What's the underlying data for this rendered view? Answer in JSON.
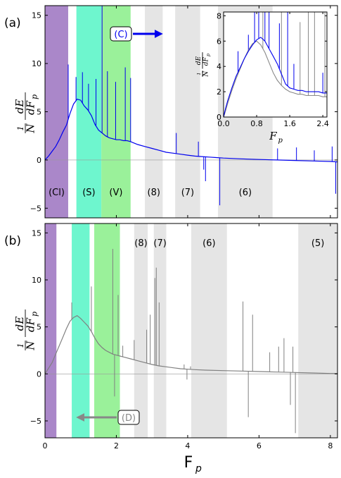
{
  "chart_data": [
    {
      "panel": "(a)",
      "type": "line",
      "xlim": [
        0,
        8.2
      ],
      "ylim": [
        -6,
        16
      ],
      "xticks": [],
      "yticks": [
        -5,
        0,
        5,
        10,
        15
      ],
      "ytick_labels": [
        "−5",
        "0",
        "5",
        "10",
        "15"
      ],
      "ylabel": {
        "frac_top": "1",
        "frac_bottom": "N",
        "dE": "dE",
        "dFp": "dF",
        "sub": "p"
      },
      "series": [
        {
          "color": "#0000ee",
          "x": [
            0.0,
            0.1,
            0.2,
            0.3,
            0.4,
            0.5,
            0.6,
            0.7,
            0.8,
            0.9,
            1.0,
            1.1,
            1.2,
            1.3,
            1.4,
            1.5,
            1.6,
            1.7,
            1.8,
            1.9,
            2.0,
            2.1,
            2.2,
            2.3,
            2.4,
            2.6,
            2.8,
            3.0,
            3.2,
            3.4,
            3.6,
            3.8,
            4.0,
            4.2,
            4.4,
            4.6,
            4.8,
            5.0,
            5.5,
            6.0,
            6.5,
            7.0,
            7.5,
            8.0,
            8.2
          ],
          "y": [
            0.0,
            0.4,
            0.9,
            1.4,
            2.1,
            2.9,
            3.6,
            4.8,
            5.8,
            6.3,
            6.2,
            5.6,
            5.2,
            4.6,
            3.7,
            3.1,
            2.8,
            2.5,
            2.3,
            2.2,
            2.1,
            2.1,
            2.0,
            2.0,
            1.9,
            1.6,
            1.4,
            1.2,
            1.0,
            0.8,
            0.7,
            0.6,
            0.5,
            0.4,
            0.35,
            0.3,
            0.25,
            0.2,
            0.12,
            0.05,
            0.0,
            -0.05,
            -0.1,
            -0.15,
            -0.2
          ]
        }
      ],
      "spikes": [
        {
          "x": 0.65,
          "y": 9.9
        },
        {
          "x": 0.87,
          "y": 8.6
        },
        {
          "x": 1.05,
          "y": 9.1
        },
        {
          "x": 1.22,
          "y": 7.9
        },
        {
          "x": 1.43,
          "y": 8.4
        },
        {
          "x": 1.6,
          "y": 16.0
        },
        {
          "x": 1.75,
          "y": 9.2
        },
        {
          "x": 1.98,
          "y": 8.1
        },
        {
          "x": 2.25,
          "y": 9.6
        },
        {
          "x": 2.4,
          "y": 8.5
        },
        {
          "x": 3.68,
          "y": 2.8
        },
        {
          "x": 4.3,
          "y": 1.9
        },
        {
          "x": 4.45,
          "y": -1.0
        },
        {
          "x": 4.5,
          "y": -2.2
        },
        {
          "x": 4.9,
          "y": -4.7
        },
        {
          "x": 6.52,
          "y": 1.2
        },
        {
          "x": 7.05,
          "y": 1.3
        },
        {
          "x": 7.55,
          "y": 1.0
        },
        {
          "x": 8.05,
          "y": 1.4
        },
        {
          "x": 8.15,
          "y": -3.5
        }
      ],
      "bands": [
        {
          "label": "(Cl)",
          "x0": 0.0,
          "x1": 0.65,
          "color": "#9b72bf"
        },
        {
          "label": "(S)",
          "x0": 0.88,
          "x1": 1.58,
          "color": "#55f5c5"
        },
        {
          "label": "(V)",
          "x0": 1.58,
          "x1": 2.4,
          "color": "#88ee88"
        },
        {
          "label": "(8)",
          "x0": 2.8,
          "x1": 3.3,
          "color": "#e0e0e0"
        },
        {
          "label": "(7)",
          "x0": 3.65,
          "x1": 4.35,
          "color": "#e0e0e0"
        },
        {
          "label": "(6)",
          "x0": 4.85,
          "x1": 6.38,
          "color": "#e0e0e0"
        }
      ],
      "annotation": {
        "text": "(C)",
        "color": "#0000ee",
        "direction": "right"
      },
      "inset": {
        "xlim": [
          0,
          2.5
        ],
        "ylim": [
          0,
          8.3
        ],
        "xticks": [
          0.0,
          0.8,
          1.6,
          2.4
        ],
        "xtick_labels": [
          "0.0",
          "0.8",
          "1.6",
          "2.4"
        ],
        "yticks": [
          0,
          2,
          4,
          6,
          8
        ],
        "ytick_labels": [
          "0",
          "2",
          "4",
          "6",
          "8"
        ],
        "xlabel": {
          "main": "F",
          "sub": "p"
        },
        "ylabel": {
          "frac_top": "1",
          "frac_bottom": "N",
          "dE": "dE",
          "dFp": "dF",
          "sub": "p"
        },
        "series": [
          {
            "name": "",
            "color": "#888888",
            "x": [
              0.0,
              0.05,
              0.1,
              0.2,
              0.3,
              0.4,
              0.5,
              0.6,
              0.7,
              0.8,
              0.9,
              1.0,
              1.1,
              1.2,
              1.3,
              1.4,
              1.5,
              1.6,
              1.7,
              1.8,
              1.9,
              2.0,
              2.1,
              2.2,
              2.3,
              2.4,
              2.5
            ],
            "y": [
              0.0,
              0.5,
              1.1,
              2.1,
              3.0,
              3.8,
              4.6,
              5.3,
              5.8,
              6.0,
              5.7,
              5.1,
              4.3,
              3.5,
              2.9,
              2.5,
              2.2,
              2.0,
              1.9,
              1.8,
              1.8,
              1.7,
              1.7,
              1.7,
              1.7,
              1.6,
              1.6
            ]
          },
          {
            "name": "",
            "color": "#0000ee",
            "x": [
              0.0,
              0.05,
              0.1,
              0.2,
              0.3,
              0.4,
              0.5,
              0.6,
              0.7,
              0.8,
              0.9,
              1.0,
              1.1,
              1.2,
              1.3,
              1.4,
              1.5,
              1.6,
              1.7,
              1.8,
              1.9,
              2.0,
              2.1,
              2.2,
              2.3,
              2.4,
              2.5
            ],
            "y": [
              0.0,
              0.7,
              1.3,
              2.3,
              3.2,
              3.9,
              4.6,
              5.2,
              5.7,
              6.1,
              6.3,
              6.0,
              5.4,
              4.8,
              4.2,
              3.4,
              2.6,
              2.3,
              2.2,
              2.1,
              2.1,
              2.0,
              2.0,
              2.0,
              2.0,
              1.9,
              1.9
            ]
          }
        ],
        "spikes": [
          {
            "x": 0.35,
            "y": 5.2,
            "color": "#0000ee"
          },
          {
            "x": 0.6,
            "y": 6.5,
            "color": "#0000ee"
          },
          {
            "x": 0.75,
            "y": 8.3,
            "color": "#0000ee"
          },
          {
            "x": 0.85,
            "y": 8.3,
            "color": "#0000ee"
          },
          {
            "x": 1.0,
            "y": 8.3,
            "color": "#0000ee"
          },
          {
            "x": 1.1,
            "y": 8.3,
            "color": "#0000ee"
          },
          {
            "x": 1.35,
            "y": 7.4,
            "color": "#0000ee"
          },
          {
            "x": 1.55,
            "y": 8.3,
            "color": "#0000ee"
          },
          {
            "x": 1.7,
            "y": 4.2,
            "color": "#0000ee"
          },
          {
            "x": 2.4,
            "y": 3.5,
            "color": "#0000ee"
          },
          {
            "x": 0.95,
            "y": 8.3,
            "color": "#888888"
          },
          {
            "x": 1.4,
            "y": 8.3,
            "color": "#888888"
          },
          {
            "x": 1.85,
            "y": 7.5,
            "color": "#888888"
          },
          {
            "x": 2.05,
            "y": 8.3,
            "color": "#888888"
          },
          {
            "x": 2.2,
            "y": 8.3,
            "color": "#888888"
          },
          {
            "x": 2.45,
            "y": 8.3,
            "color": "#888888"
          }
        ]
      }
    },
    {
      "panel": "(b)",
      "type": "line",
      "xlim": [
        0,
        8.2
      ],
      "ylim": [
        -6.8,
        16.0
      ],
      "xticks": [
        0,
        2,
        4,
        6,
        8
      ],
      "xtick_labels": [
        "0",
        "2",
        "4",
        "6",
        "8"
      ],
      "yticks": [
        -5,
        0,
        5,
        10,
        15
      ],
      "ytick_labels": [
        "−5",
        "0",
        "5",
        "10",
        "15"
      ],
      "xlabel": {
        "main": "F",
        "sub": "p"
      },
      "ylabel": {
        "frac_top": "1",
        "frac_bottom": "N",
        "dE": "dE",
        "dFp": "dF",
        "sub": "p"
      },
      "series": [
        {
          "color": "#808080",
          "x": [
            0.0,
            0.1,
            0.2,
            0.3,
            0.4,
            0.5,
            0.6,
            0.7,
            0.8,
            0.9,
            1.0,
            1.1,
            1.2,
            1.3,
            1.4,
            1.5,
            1.6,
            1.7,
            1.8,
            1.9,
            2.0,
            2.1,
            2.2,
            2.4,
            2.6,
            2.8,
            3.0,
            3.2,
            3.4,
            3.6,
            3.8,
            4.0,
            4.2,
            4.5,
            5.0,
            5.5,
            6.0,
            6.5,
            7.0,
            7.5,
            8.0,
            8.2
          ],
          "y": [
            0.0,
            0.6,
            1.2,
            2.1,
            3.0,
            3.9,
            4.8,
            5.6,
            6.0,
            6.2,
            5.9,
            5.5,
            5.1,
            4.5,
            3.8,
            3.2,
            2.8,
            2.5,
            2.3,
            2.1,
            2.0,
            1.9,
            1.8,
            1.6,
            1.4,
            1.2,
            1.0,
            0.85,
            0.75,
            0.65,
            0.55,
            0.5,
            0.45,
            0.4,
            0.35,
            0.3,
            0.25,
            0.2,
            0.15,
            0.1,
            0.05,
            0.05
          ]
        }
      ],
      "spikes": [
        {
          "x": 0.75,
          "y": 7.6
        },
        {
          "x": 1.3,
          "y": 9.3
        },
        {
          "x": 1.9,
          "y": 13.3
        },
        {
          "x": 1.95,
          "y": -2.4
        },
        {
          "x": 2.05,
          "y": 8.4
        },
        {
          "x": 2.18,
          "y": 3.0
        },
        {
          "x": 2.5,
          "y": 3.6
        },
        {
          "x": 2.85,
          "y": 4.7
        },
        {
          "x": 2.95,
          "y": 6.3
        },
        {
          "x": 3.08,
          "y": 10.2
        },
        {
          "x": 3.12,
          "y": 11.3
        },
        {
          "x": 3.2,
          "y": 7.6
        },
        {
          "x": 3.9,
          "y": 1.0
        },
        {
          "x": 3.98,
          "y": -0.6
        },
        {
          "x": 4.08,
          "y": 0.8
        },
        {
          "x": 5.55,
          "y": 7.7
        },
        {
          "x": 5.7,
          "y": -4.6
        },
        {
          "x": 5.82,
          "y": 6.3
        },
        {
          "x": 6.3,
          "y": 2.3
        },
        {
          "x": 6.55,
          "y": 2.9
        },
        {
          "x": 6.7,
          "y": 3.8
        },
        {
          "x": 6.88,
          "y": -3.3
        },
        {
          "x": 6.95,
          "y": 2.9
        },
        {
          "x": 7.02,
          "y": -6.3
        }
      ],
      "bands": [
        {
          "label": "",
          "x0": 0.0,
          "x1": 0.32,
          "color": "#9b72bf"
        },
        {
          "label": "",
          "x0": 0.75,
          "x1": 1.25,
          "color": "#55f5c5"
        },
        {
          "label": "",
          "x0": 1.38,
          "x1": 2.1,
          "color": "#88ee88"
        },
        {
          "label": "(8)",
          "x0": 2.5,
          "x1": 2.88,
          "color": "#e0e0e0"
        },
        {
          "label": "(7)",
          "x0": 3.05,
          "x1": 3.4,
          "color": "#e0e0e0"
        },
        {
          "label": "(6)",
          "x0": 4.1,
          "x1": 5.1,
          "color": "#e0e0e0"
        },
        {
          "label": "(5)",
          "x0": 7.1,
          "x1": 8.2,
          "color": "#e0e0e0"
        }
      ],
      "annotation": {
        "text": "(D)",
        "color": "#888888",
        "direction": "left"
      }
    }
  ]
}
